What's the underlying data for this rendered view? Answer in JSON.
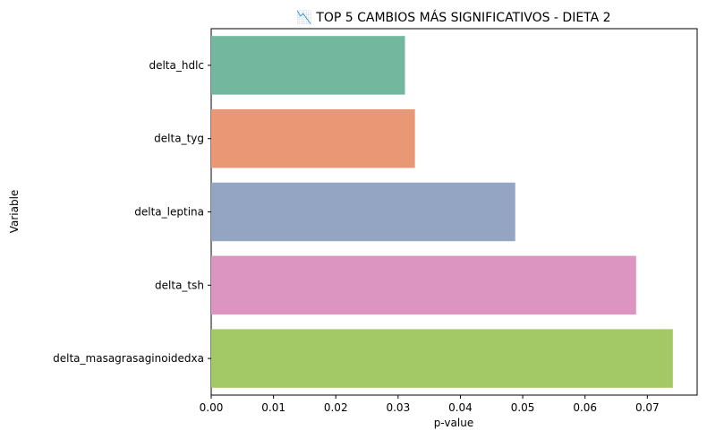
{
  "chart_data": {
    "type": "bar",
    "orientation": "horizontal",
    "title": "📉 TOP 5 CAMBIOS MÁS SIGNIFICATIVOS - DIETA 2",
    "xlabel": "p-value",
    "ylabel": "Variable",
    "categories": [
      "delta_hdlc",
      "delta_tyg",
      "delta_leptina",
      "delta_tsh",
      "delta_masagrasaginoidedxa"
    ],
    "values": [
      0.0311,
      0.0327,
      0.0488,
      0.0682,
      0.0741
    ],
    "colors": [
      "#73b79f",
      "#e99775",
      "#94a4c3",
      "#dc94c0",
      "#a3c967"
    ],
    "xlim": [
      0,
      0.078
    ],
    "xticks": [
      0.0,
      0.01,
      0.02,
      0.03,
      0.04,
      0.05,
      0.06,
      0.07
    ],
    "xtick_labels": [
      "0.00",
      "0.01",
      "0.02",
      "0.03",
      "0.04",
      "0.05",
      "0.06",
      "0.07"
    ],
    "grid": false,
    "legend": "none"
  }
}
